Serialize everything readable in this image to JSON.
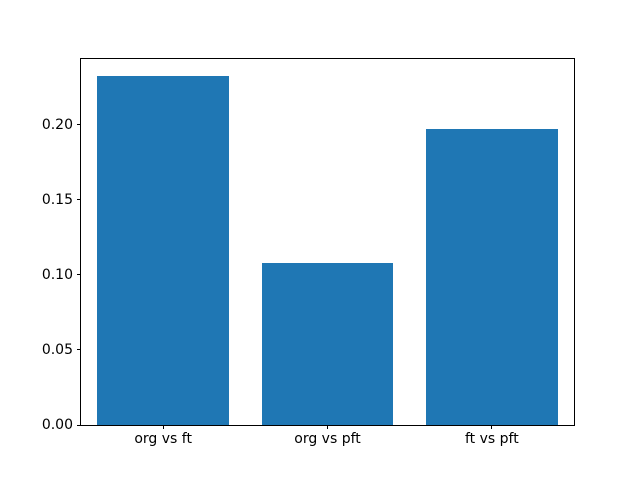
{
  "chart_data": {
    "type": "bar",
    "categories": [
      "org vs ft",
      "org vs pft",
      "ft vs pft"
    ],
    "values": [
      0.232,
      0.108,
      0.197
    ],
    "title": "",
    "xlabel": "",
    "ylabel": "",
    "ylim": [
      0,
      0.2436
    ],
    "yticks": [
      0.0,
      0.05,
      0.1,
      0.15,
      0.2
    ],
    "ytick_labels": [
      "0.00",
      "0.05",
      "0.10",
      "0.15",
      "0.20"
    ],
    "bar_color": "#1f77b4",
    "bar_width_fraction": 0.8,
    "grid": false,
    "legend": null
  },
  "figure": {
    "background_color": "#ffffff",
    "spine_color": "#000000"
  }
}
